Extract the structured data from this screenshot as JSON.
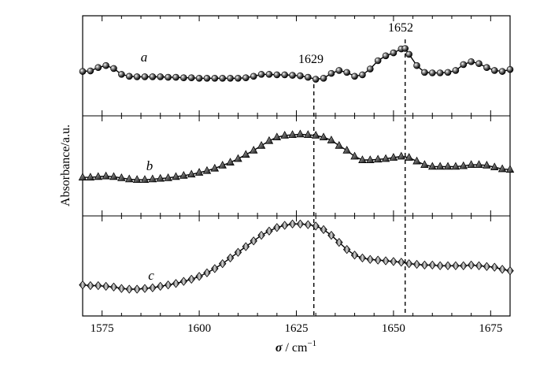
{
  "chart_data": {
    "type": "line",
    "layout": "stacked-panels",
    "xlabel_symbol": "σ",
    "xlabel_unit": " / cm",
    "xlabel_exp": "−1",
    "ylabel": "Absorbance/a.u.",
    "xlim": [
      1570,
      1680
    ],
    "xticks": [
      1575,
      1600,
      1625,
      1650,
      1675
    ],
    "tick_labels": [
      "1575",
      "1600",
      "1625",
      "1650",
      "1675"
    ],
    "reference_lines": [
      {
        "x": 1629.5,
        "label": "1629"
      },
      {
        "x": 1653,
        "label": "1652"
      }
    ],
    "series": [
      {
        "name": "a",
        "marker": "circle",
        "x": [
          1570,
          1572,
          1574,
          1576,
          1578,
          1580,
          1582,
          1584,
          1586,
          1588,
          1590,
          1592,
          1594,
          1596,
          1598,
          1600,
          1602,
          1604,
          1606,
          1608,
          1610,
          1612,
          1614,
          1616,
          1618,
          1620,
          1622,
          1624,
          1626,
          1628,
          1630,
          1632,
          1634,
          1636,
          1638,
          1640,
          1642,
          1644,
          1646,
          1648,
          1650,
          1652,
          1653,
          1654,
          1656,
          1658,
          1660,
          1662,
          1664,
          1666,
          1668,
          1670,
          1672,
          1674,
          1676,
          1678,
          1680
        ],
        "values": [
          0.28,
          0.29,
          0.36,
          0.4,
          0.34,
          0.22,
          0.18,
          0.17,
          0.17,
          0.17,
          0.17,
          0.16,
          0.16,
          0.15,
          0.15,
          0.14,
          0.14,
          0.14,
          0.14,
          0.14,
          0.14,
          0.15,
          0.18,
          0.22,
          0.22,
          0.21,
          0.21,
          0.2,
          0.19,
          0.16,
          0.12,
          0.14,
          0.24,
          0.3,
          0.26,
          0.18,
          0.21,
          0.33,
          0.5,
          0.6,
          0.66,
          0.74,
          0.75,
          0.63,
          0.4,
          0.26,
          0.25,
          0.25,
          0.26,
          0.3,
          0.42,
          0.48,
          0.44,
          0.36,
          0.3,
          0.28,
          0.32
        ]
      },
      {
        "name": "b",
        "marker": "triangle",
        "x": [
          1570,
          1572,
          1574,
          1576,
          1578,
          1580,
          1582,
          1584,
          1586,
          1588,
          1590,
          1592,
          1594,
          1596,
          1598,
          1600,
          1602,
          1604,
          1606,
          1608,
          1610,
          1612,
          1614,
          1616,
          1618,
          1620,
          1622,
          1624,
          1626,
          1628,
          1630,
          1632,
          1634,
          1636,
          1638,
          1640,
          1642,
          1644,
          1646,
          1648,
          1650,
          1652,
          1654,
          1656,
          1658,
          1660,
          1662,
          1664,
          1666,
          1668,
          1670,
          1672,
          1674,
          1676,
          1678,
          1680
        ],
        "values": [
          0.17,
          0.17,
          0.18,
          0.19,
          0.18,
          0.16,
          0.14,
          0.13,
          0.13,
          0.14,
          0.15,
          0.16,
          0.18,
          0.2,
          0.22,
          0.25,
          0.28,
          0.32,
          0.37,
          0.42,
          0.48,
          0.55,
          0.62,
          0.7,
          0.78,
          0.84,
          0.87,
          0.88,
          0.89,
          0.88,
          0.87,
          0.84,
          0.79,
          0.7,
          0.62,
          0.52,
          0.46,
          0.46,
          0.47,
          0.48,
          0.5,
          0.52,
          0.5,
          0.44,
          0.38,
          0.35,
          0.35,
          0.35,
          0.35,
          0.36,
          0.38,
          0.38,
          0.37,
          0.34,
          0.31,
          0.3
        ]
      },
      {
        "name": "c",
        "marker": "diamond",
        "x": [
          1570,
          1572,
          1574,
          1576,
          1578,
          1580,
          1582,
          1584,
          1586,
          1588,
          1590,
          1592,
          1594,
          1596,
          1598,
          1600,
          1602,
          1604,
          1606,
          1608,
          1610,
          1612,
          1614,
          1616,
          1618,
          1620,
          1622,
          1624,
          1626,
          1628,
          1630,
          1632,
          1634,
          1636,
          1638,
          1640,
          1642,
          1644,
          1646,
          1648,
          1650,
          1652,
          1654,
          1656,
          1658,
          1660,
          1662,
          1664,
          1666,
          1668,
          1670,
          1672,
          1674,
          1676,
          1678,
          1680
        ],
        "values": [
          0.16,
          0.15,
          0.15,
          0.14,
          0.13,
          0.11,
          0.1,
          0.1,
          0.11,
          0.12,
          0.14,
          0.16,
          0.18,
          0.21,
          0.24,
          0.28,
          0.33,
          0.39,
          0.46,
          0.54,
          0.62,
          0.7,
          0.78,
          0.86,
          0.92,
          0.97,
          1.0,
          1.02,
          1.02,
          1.01,
          0.99,
          0.94,
          0.86,
          0.76,
          0.66,
          0.58,
          0.54,
          0.52,
          0.51,
          0.5,
          0.49,
          0.48,
          0.46,
          0.45,
          0.44,
          0.44,
          0.43,
          0.43,
          0.43,
          0.43,
          0.44,
          0.43,
          0.42,
          0.41,
          0.38,
          0.36
        ]
      }
    ]
  }
}
